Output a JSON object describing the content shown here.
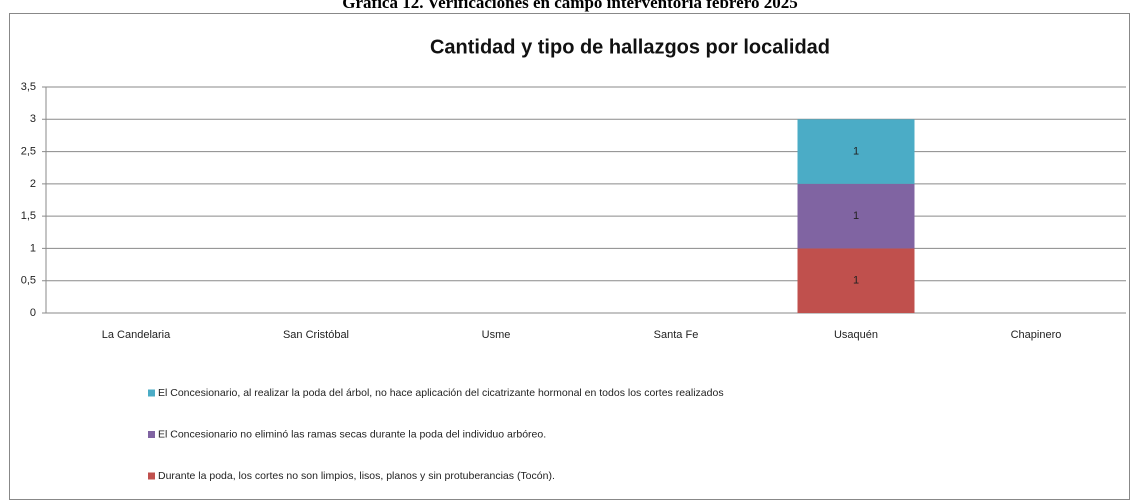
{
  "caption": "Gráfica 12. Verificaciones en campo interventoría febrero 2025",
  "chart_data": {
    "type": "stacked_bar",
    "title": "Cantidad y tipo de hallazgos por localidad",
    "categories": [
      "La Candelaria",
      "San Cristóbal",
      "Usme",
      "Santa Fe",
      "Usaquén",
      "Chapinero"
    ],
    "series": [
      {
        "name": "Durante la poda, los cortes no son limpios, lisos, planos y sin protuberancias (Tocón).",
        "color": "#c0504d",
        "values": [
          null,
          null,
          null,
          null,
          1,
          null
        ]
      },
      {
        "name": "El Concesionario no eliminó las ramas secas durante  la poda del individuo arbóreo.",
        "color": "#8064a2",
        "values": [
          null,
          null,
          null,
          null,
          1,
          null
        ]
      },
      {
        "name": "El Concesionario, al realizar la poda del árbol,  no hace aplicación del cicatrizante hormonal en todos los cortes realizados",
        "color": "#4bacc6",
        "values": [
          null,
          null,
          null,
          null,
          1,
          null
        ]
      }
    ],
    "ylim": [
      0,
      3.5
    ],
    "yticks": [
      0,
      {
        "value": 0.5,
        "label": "0,5"
      },
      1,
      {
        "value": 1.5,
        "label": "1,5"
      },
      2,
      {
        "value": 2.5,
        "label": "2,5"
      },
      3,
      {
        "value": 3.5,
        "label": "3,5"
      }
    ],
    "grid": true,
    "legend": "bottom"
  }
}
